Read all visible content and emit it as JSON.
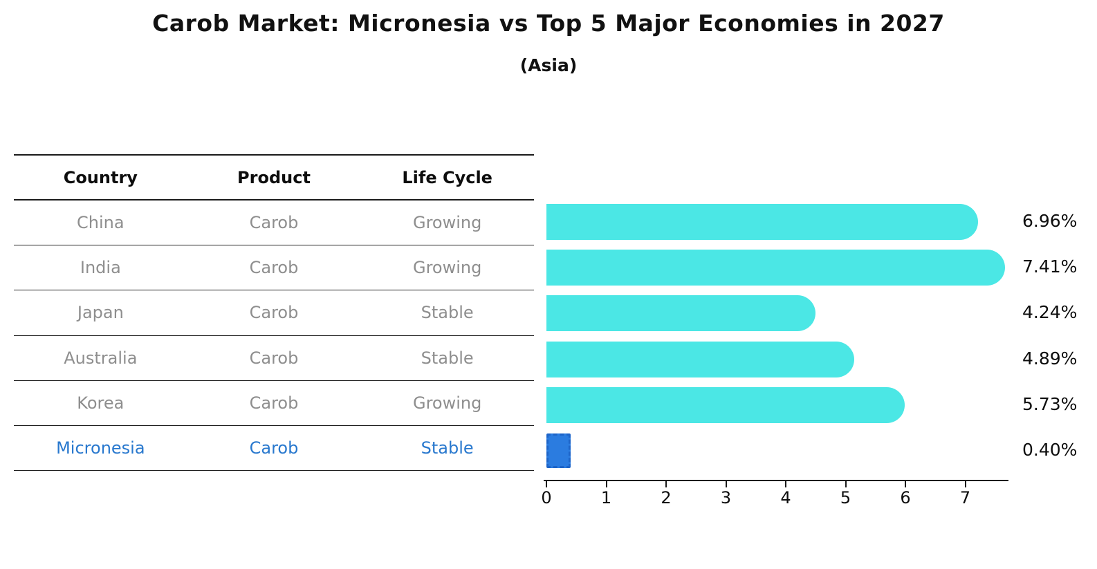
{
  "header": {
    "title": "Carob Market: Micronesia vs Top 5 Major Economies in 2027",
    "subtitle": "(Asia)"
  },
  "table": {
    "columns": [
      "Country",
      "Product",
      "Life Cycle"
    ],
    "rows": [
      {
        "country": "China",
        "product": "Carob",
        "life_cycle": "Growing",
        "pct_label": "6.96%",
        "highlight": false
      },
      {
        "country": "India",
        "product": "Carob",
        "life_cycle": "Growing",
        "pct_label": "7.41%",
        "highlight": false
      },
      {
        "country": "Japan",
        "product": "Carob",
        "life_cycle": "Stable",
        "pct_label": "4.24%",
        "highlight": false
      },
      {
        "country": "Australia",
        "product": "Carob",
        "life_cycle": "Stable",
        "pct_label": "4.89%",
        "highlight": false
      },
      {
        "country": "Korea",
        "product": "Carob",
        "life_cycle": "Growing",
        "pct_label": "5.73%",
        "highlight": false
      },
      {
        "country": "Micronesia",
        "product": "Carob",
        "life_cycle": "Stable",
        "pct_label": "0.40%",
        "highlight": true
      }
    ]
  },
  "chart_data": {
    "type": "bar",
    "orientation": "horizontal",
    "title": "Carob Market: Micronesia vs Top 5 Major Economies in 2027",
    "subtitle": "(Asia)",
    "categories": [
      "China",
      "India",
      "Japan",
      "Australia",
      "Korea",
      "Micronesia"
    ],
    "values": [
      6.96,
      7.41,
      4.24,
      4.89,
      5.73,
      0.4
    ],
    "data_labels": [
      "6.96%",
      "7.41%",
      "4.24%",
      "4.89%",
      "5.73%",
      "0.40%"
    ],
    "xlabel": "",
    "ylabel": "",
    "xlim": [
      0,
      7.8
    ],
    "x_ticks": [
      0,
      1,
      2,
      3,
      4,
      5,
      6,
      7
    ],
    "grid": false,
    "legend": "none",
    "highlighted_category": "Micronesia"
  },
  "colors": {
    "bar": "#4BE7E5",
    "highlight_bar": "#2B7CE0",
    "highlight_bar_border": "#1D64C8",
    "row_text": "#8e8e8e",
    "highlight_text": "#2878CE",
    "header_text": "#0d0d0d",
    "axis": "#1a1a1a"
  }
}
